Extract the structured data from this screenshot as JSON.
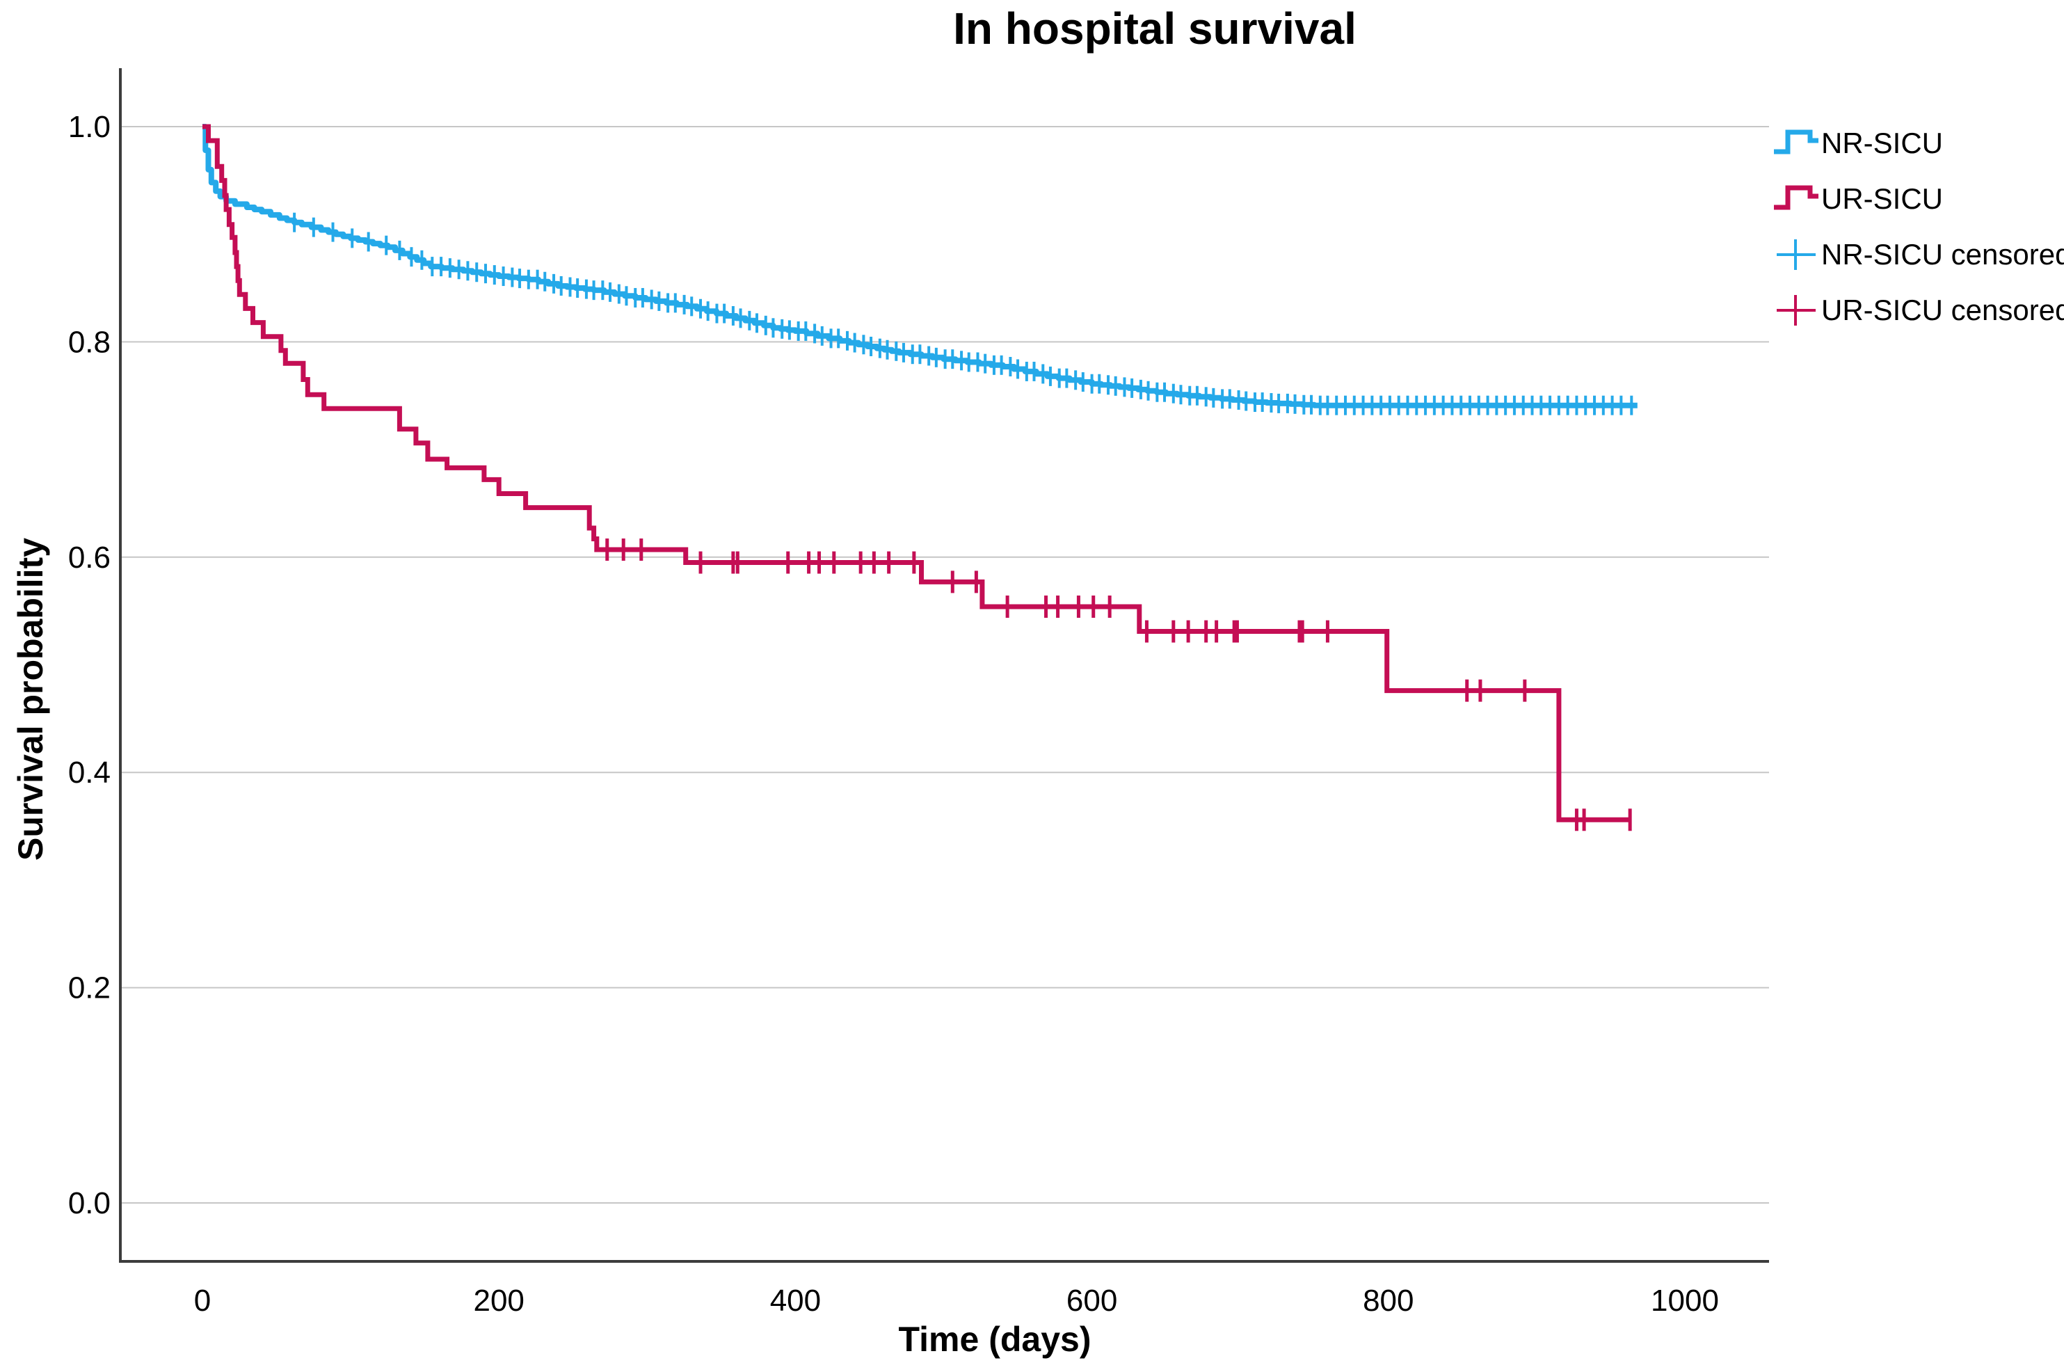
{
  "title": "In hospital survival",
  "axes": {
    "x": {
      "label": "Time (days)",
      "tick_labels": [
        "0",
        "200",
        "400",
        "600",
        "800",
        "1000"
      ],
      "tick_values": [
        0,
        200,
        400,
        600,
        800,
        1000
      ],
      "range_days": [
        -55,
        1057
      ]
    },
    "y": {
      "label": "Survival probability",
      "tick_labels": [
        "1.0",
        "0.8",
        "0.6",
        "0.4",
        "0.2",
        "0.0"
      ],
      "tick_values": [
        1.0,
        0.8,
        0.6,
        0.4,
        0.2,
        0.0
      ],
      "range": [
        -0.054,
        1.054
      ],
      "grid": "horizontal"
    }
  },
  "legend": {
    "items": [
      {
        "label": "NR-SICU",
        "series": "nr",
        "symbol": "line"
      },
      {
        "label": "UR-SICU",
        "series": "ur",
        "symbol": "line"
      },
      {
        "label": "NR-SICU censored",
        "series": "nr",
        "symbol": "plus"
      },
      {
        "label": "UR-SICU censored",
        "series": "ur",
        "symbol": "plus"
      }
    ],
    "position": "top-right"
  },
  "colors": {
    "nr": "#25A9E9",
    "ur": "#C40E54",
    "grid": "#C6C6C6",
    "axis": "#3C3C3C",
    "text": "#000000",
    "background": "#FFFFFF"
  },
  "chart_data": {
    "type": "line",
    "subtype": "kaplan-meier-step",
    "title": "In hospital survival",
    "xlabel": "Time (days)",
    "ylabel": "Survival probability",
    "xlim": [
      -55,
      1057
    ],
    "ylim": [
      -0.054,
      1.054
    ],
    "series": [
      {
        "name": "NR-SICU",
        "color": "#25A9E9",
        "end_day": 968,
        "steps": [
          [
            0,
            1.0
          ],
          [
            2,
            0.978
          ],
          [
            4,
            0.96
          ],
          [
            6,
            0.948
          ],
          [
            9,
            0.94
          ],
          [
            12,
            0.935
          ],
          [
            16,
            0.931
          ],
          [
            22,
            0.928
          ],
          [
            30,
            0.925
          ],
          [
            40,
            0.921
          ],
          [
            52,
            0.915
          ],
          [
            67,
            0.909
          ],
          [
            80,
            0.904
          ],
          [
            95,
            0.898
          ],
          [
            110,
            0.893
          ],
          [
            125,
            0.888
          ],
          [
            140,
            0.879
          ],
          [
            154,
            0.87
          ],
          [
            176,
            0.866
          ],
          [
            200,
            0.861
          ],
          [
            220,
            0.858
          ],
          [
            240,
            0.852
          ],
          [
            264,
            0.848
          ],
          [
            292,
            0.841
          ],
          [
            327,
            0.833
          ],
          [
            360,
            0.822
          ],
          [
            385,
            0.813
          ],
          [
            400,
            0.81
          ],
          [
            430,
            0.801
          ],
          [
            455,
            0.794
          ],
          [
            470,
            0.79
          ],
          [
            500,
            0.784
          ],
          [
            540,
            0.777
          ],
          [
            570,
            0.768
          ],
          [
            600,
            0.761
          ],
          [
            625,
            0.757
          ],
          [
            650,
            0.752
          ],
          [
            680,
            0.748
          ],
          [
            710,
            0.744
          ],
          [
            750,
            0.741
          ]
        ],
        "censored_days": [
          62,
          75,
          88,
          101,
          112,
          124,
          133,
          141,
          148,
          155,
          161,
          167,
          173,
          179,
          185,
          191,
          197,
          203,
          209,
          214,
          220,
          226,
          231,
          237,
          242,
          248,
          253,
          259,
          264,
          270,
          275,
          281,
          286,
          292,
          297,
          303,
          308,
          314,
          319,
          325,
          330,
          336,
          341,
          347,
          352,
          358,
          363,
          369,
          374,
          380,
          385,
          391,
          396,
          402,
          407,
          413,
          418,
          424,
          429,
          435,
          440,
          446,
          451,
          457,
          462,
          468,
          473,
          479,
          484,
          490,
          495,
          501,
          506,
          512,
          517,
          523,
          528,
          534,
          539,
          545,
          550,
          556,
          561,
          567,
          572,
          578,
          583,
          589,
          594,
          600,
          605,
          611,
          616,
          622,
          627,
          633,
          638,
          644,
          649,
          655,
          660,
          666,
          671,
          677,
          682,
          688,
          693,
          699,
          704,
          710,
          715,
          721,
          726,
          732,
          737,
          743,
          748,
          754,
          759,
          765,
          771,
          777,
          783,
          789,
          795,
          801,
          807,
          813,
          819,
          825,
          831,
          837,
          843,
          849,
          855,
          861,
          867,
          873,
          879,
          885,
          891,
          897,
          903,
          909,
          915,
          921,
          927,
          933,
          939,
          945,
          951,
          957,
          964
        ]
      },
      {
        "name": "UR-SICU",
        "color": "#C40E54",
        "end_day": 963,
        "steps": [
          [
            0,
            1.0
          ],
          [
            4,
            0.987
          ],
          [
            10,
            0.963
          ],
          [
            13,
            0.95
          ],
          [
            15,
            0.936
          ],
          [
            16,
            0.923
          ],
          [
            18,
            0.909
          ],
          [
            20,
            0.897
          ],
          [
            22,
            0.883
          ],
          [
            23,
            0.87
          ],
          [
            24,
            0.857
          ],
          [
            25,
            0.844
          ],
          [
            29,
            0.831
          ],
          [
            34,
            0.818
          ],
          [
            41,
            0.805
          ],
          [
            53,
            0.792
          ],
          [
            56,
            0.78
          ],
          [
            68,
            0.765
          ],
          [
            71,
            0.751
          ],
          [
            82,
            0.738
          ],
          [
            133,
            0.719
          ],
          [
            144,
            0.706
          ],
          [
            152,
            0.691
          ],
          [
            165,
            0.683
          ],
          [
            190,
            0.672
          ],
          [
            200,
            0.659
          ],
          [
            218,
            0.646
          ],
          [
            261,
            0.627
          ],
          [
            264,
            0.617
          ],
          [
            266,
            0.607
          ],
          [
            326,
            0.595
          ],
          [
            485,
            0.577
          ],
          [
            526,
            0.554
          ],
          [
            632,
            0.531
          ],
          [
            799,
            0.476
          ],
          [
            915,
            0.356
          ]
        ],
        "censored_days": [
          273,
          284,
          296,
          336,
          358,
          361,
          395,
          409,
          416,
          426,
          444,
          453,
          463,
          480,
          506,
          522,
          543,
          569,
          577,
          591,
          601,
          612,
          637,
          655,
          665,
          677,
          684,
          696,
          698,
          740,
          742,
          759,
          853,
          862,
          892,
          927,
          932,
          963
        ]
      }
    ]
  }
}
